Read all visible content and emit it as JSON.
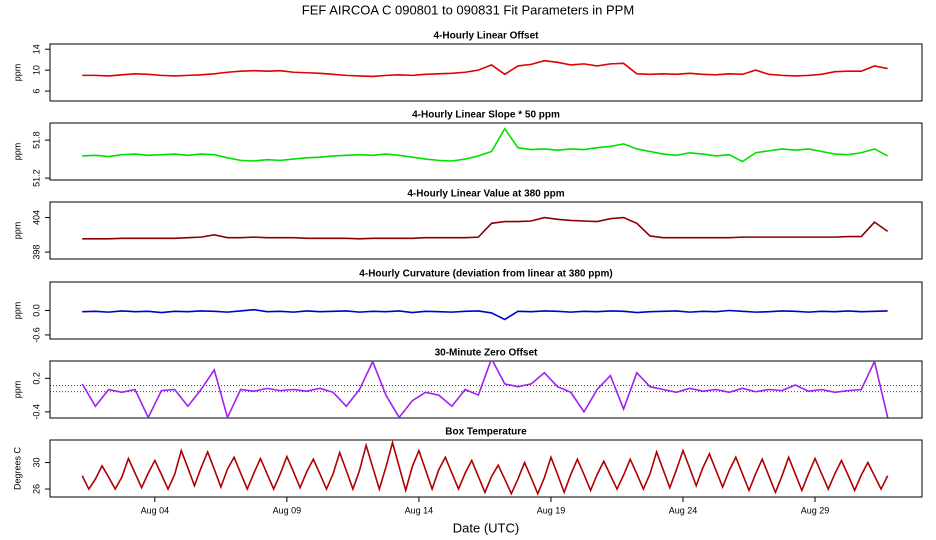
{
  "title": "FEF   AIRCOA C   090801 to 090831   Fit Parameters in PPM",
  "chart_data": [
    {
      "type": "line",
      "title": "4-Hourly Linear Offset",
      "ylabel": "ppm",
      "color": "#e00000",
      "xlim": [
        0.03,
        33.05
      ],
      "ylim": [
        4.1,
        15
      ],
      "yticks": [
        6,
        10,
        14
      ],
      "x": [
        1.25,
        1.75,
        2.25,
        2.75,
        3.25,
        3.75,
        4.25,
        4.75,
        5.25,
        5.75,
        6.25,
        6.75,
        7.25,
        7.75,
        8.25,
        8.75,
        9.25,
        9.75,
        10.25,
        10.75,
        11.25,
        11.75,
        12.25,
        12.75,
        13.25,
        13.75,
        14.25,
        14.75,
        15.25,
        15.75,
        16.25,
        16.75,
        17.25,
        17.75,
        18.25,
        18.75,
        19.25,
        19.75,
        20.25,
        20.75,
        21.25,
        21.75,
        22.25,
        22.75,
        23.25,
        23.75,
        24.25,
        24.75,
        25.25,
        25.75,
        26.25,
        26.75,
        27.25,
        27.75,
        28.25,
        28.75,
        29.25,
        29.75,
        30.25,
        30.75,
        31.25,
        31.75
      ],
      "values": [
        9.0,
        9.0,
        8.9,
        9.1,
        9.3,
        9.2,
        9.0,
        8.9,
        9.0,
        9.1,
        9.3,
        9.6,
        9.8,
        9.9,
        9.8,
        9.9,
        9.6,
        9.5,
        9.4,
        9.2,
        9.0,
        8.9,
        8.8,
        9.0,
        9.1,
        9.0,
        9.2,
        9.3,
        9.4,
        9.6,
        10.0,
        11.0,
        9.2,
        10.8,
        11.1,
        11.8,
        11.5,
        11.0,
        11.2,
        10.8,
        11.2,
        11.3,
        9.3,
        9.2,
        9.3,
        9.2,
        9.4,
        9.2,
        9.1,
        9.3,
        9.2,
        10.0,
        9.2,
        9.0,
        8.9,
        9.0,
        9.2,
        9.7,
        9.8,
        9.8,
        10.8,
        10.3
      ]
    },
    {
      "type": "line",
      "title": "4-Hourly Linear Slope * 50 ppm",
      "ylabel": "ppm",
      "color": "#00e000",
      "xlim": [
        0.03,
        33.05
      ],
      "ylim": [
        51.17,
        52.07
      ],
      "yticks": [
        51.2,
        51.8
      ],
      "x": [
        1.25,
        1.75,
        2.25,
        2.75,
        3.25,
        3.75,
        4.25,
        4.75,
        5.25,
        5.75,
        6.25,
        6.75,
        7.25,
        7.75,
        8.25,
        8.75,
        9.25,
        9.75,
        10.25,
        10.75,
        11.25,
        11.75,
        12.25,
        12.75,
        13.25,
        13.75,
        14.25,
        14.75,
        15.25,
        15.75,
        16.25,
        16.75,
        17.25,
        17.75,
        18.25,
        18.75,
        19.25,
        19.75,
        20.25,
        20.75,
        21.25,
        21.75,
        22.25,
        22.75,
        23.25,
        23.75,
        24.25,
        24.75,
        25.25,
        25.75,
        26.25,
        26.75,
        27.25,
        27.75,
        28.25,
        28.75,
        29.25,
        29.75,
        30.25,
        30.75,
        31.25,
        31.75
      ],
      "values": [
        51.55,
        51.56,
        51.54,
        51.57,
        51.58,
        51.56,
        51.57,
        51.58,
        51.56,
        51.58,
        51.57,
        51.52,
        51.48,
        51.47,
        51.49,
        51.48,
        51.5,
        51.52,
        51.53,
        51.55,
        51.56,
        51.57,
        51.56,
        51.58,
        51.56,
        51.53,
        51.5,
        51.48,
        51.47,
        51.5,
        51.55,
        51.62,
        51.98,
        51.68,
        51.65,
        51.66,
        51.64,
        51.66,
        51.65,
        51.68,
        51.7,
        51.74,
        51.66,
        51.62,
        51.58,
        51.56,
        51.6,
        51.58,
        51.55,
        51.57,
        51.46,
        51.6,
        51.63,
        51.66,
        51.64,
        51.66,
        51.62,
        51.58,
        51.57,
        51.6,
        51.66,
        51.55
      ]
    },
    {
      "type": "line",
      "title": "4-Hourly Linear Value at 380 ppm",
      "ylabel": "ppm",
      "color": "#8b0000",
      "xlim": [
        0.03,
        33.05
      ],
      "ylim": [
        396.8,
        406.7
      ],
      "yticks": [
        398,
        404
      ],
      "x": [
        1.25,
        1.75,
        2.25,
        2.75,
        3.25,
        3.75,
        4.25,
        4.75,
        5.25,
        5.75,
        6.25,
        6.75,
        7.25,
        7.75,
        8.25,
        8.75,
        9.25,
        9.75,
        10.25,
        10.75,
        11.25,
        11.75,
        12.25,
        12.75,
        13.25,
        13.75,
        14.25,
        14.75,
        15.25,
        15.75,
        16.25,
        16.75,
        17.25,
        17.75,
        18.25,
        18.75,
        19.25,
        19.75,
        20.25,
        20.75,
        21.25,
        21.75,
        22.25,
        22.75,
        23.25,
        23.75,
        24.25,
        24.75,
        25.25,
        25.75,
        26.25,
        26.75,
        27.25,
        27.75,
        28.25,
        28.75,
        29.25,
        29.75,
        30.25,
        30.75,
        31.25,
        31.75
      ],
      "values": [
        400.3,
        400.3,
        400.3,
        400.4,
        400.4,
        400.4,
        400.4,
        400.4,
        400.5,
        400.6,
        401.0,
        400.5,
        400.5,
        400.6,
        400.5,
        400.5,
        400.5,
        400.4,
        400.4,
        400.4,
        400.4,
        400.3,
        400.4,
        400.4,
        400.4,
        400.4,
        400.5,
        400.5,
        400.5,
        400.5,
        400.6,
        403.0,
        403.3,
        403.3,
        403.4,
        404.0,
        403.7,
        403.5,
        403.4,
        403.3,
        403.8,
        404.0,
        403.0,
        400.8,
        400.5,
        400.5,
        400.5,
        400.5,
        400.5,
        400.5,
        400.6,
        400.6,
        400.6,
        400.6,
        400.6,
        400.6,
        400.6,
        400.6,
        400.7,
        400.7,
        403.2,
        401.6
      ]
    },
    {
      "type": "line",
      "title": "4-Hourly Curvature (deviation from linear at 380 ppm)",
      "ylabel": "ppm",
      "color": "#0000cc",
      "xlim": [
        0.03,
        33.05
      ],
      "ylim": [
        -0.7,
        0.7
      ],
      "yticks": [
        -0.6,
        {
          "value": 0,
          "label": "0.0"
        }
      ],
      "x": [
        1.25,
        1.75,
        2.25,
        2.75,
        3.25,
        3.75,
        4.25,
        4.75,
        5.25,
        5.75,
        6.25,
        6.75,
        7.25,
        7.75,
        8.25,
        8.75,
        9.25,
        9.75,
        10.25,
        10.75,
        11.25,
        11.75,
        12.25,
        12.75,
        13.25,
        13.75,
        14.25,
        14.75,
        15.25,
        15.75,
        16.25,
        16.75,
        17.25,
        17.75,
        18.25,
        18.75,
        19.25,
        19.75,
        20.25,
        20.75,
        21.25,
        21.75,
        22.25,
        22.75,
        23.25,
        23.75,
        24.25,
        24.75,
        25.25,
        25.75,
        26.25,
        26.75,
        27.25,
        27.75,
        28.25,
        28.75,
        29.25,
        29.75,
        30.25,
        30.75,
        31.25,
        31.75
      ],
      "values": [
        -0.03,
        -0.02,
        -0.04,
        -0.01,
        -0.03,
        -0.02,
        -0.05,
        -0.02,
        -0.03,
        -0.01,
        -0.02,
        -0.04,
        -0.01,
        0.02,
        -0.03,
        -0.02,
        -0.04,
        -0.01,
        -0.03,
        -0.02,
        -0.01,
        -0.04,
        -0.02,
        -0.03,
        -0.01,
        -0.05,
        -0.02,
        -0.03,
        -0.04,
        -0.02,
        -0.01,
        -0.06,
        -0.22,
        -0.02,
        -0.03,
        -0.01,
        -0.02,
        -0.04,
        -0.02,
        -0.03,
        -0.01,
        -0.02,
        -0.05,
        -0.03,
        -0.02,
        -0.01,
        -0.04,
        -0.02,
        -0.03,
        0.0,
        -0.02,
        -0.04,
        -0.03,
        -0.01,
        -0.02,
        -0.04,
        -0.02,
        -0.03,
        -0.01,
        -0.03,
        -0.02,
        -0.01
      ]
    },
    {
      "type": "line",
      "title": "30-Minute Zero Offset",
      "ylabel": "ppm",
      "color": "#a020f0",
      "xlim": [
        0.03,
        33.05
      ],
      "ylim": [
        -0.51,
        0.51
      ],
      "yticks": [
        -0.4,
        0.2
      ],
      "hlines": [
        0.07,
        -0.04
      ],
      "x": [
        1.25,
        1.75,
        2.25,
        2.75,
        3.25,
        3.75,
        4.25,
        4.75,
        5.25,
        5.75,
        6.25,
        6.75,
        7.25,
        7.75,
        8.25,
        8.75,
        9.25,
        9.75,
        10.25,
        10.75,
        11.25,
        11.75,
        12.25,
        12.75,
        13.25,
        13.75,
        14.25,
        14.75,
        15.25,
        15.75,
        16.25,
        16.75,
        17.25,
        17.75,
        18.25,
        18.75,
        19.25,
        19.75,
        20.25,
        20.75,
        21.25,
        21.75,
        22.25,
        22.75,
        23.25,
        23.75,
        24.25,
        24.75,
        25.25,
        25.75,
        26.25,
        26.75,
        27.25,
        27.75,
        28.25,
        28.75,
        29.25,
        29.75,
        30.25,
        30.75,
        31.25,
        31.75
      ],
      "values": [
        0.1,
        -0.3,
        0.0,
        -0.05,
        0.0,
        -0.5,
        -0.02,
        0.0,
        -0.3,
        0.0,
        0.35,
        -0.5,
        0.0,
        -0.03,
        0.02,
        -0.02,
        0.0,
        -0.03,
        0.02,
        -0.05,
        -0.3,
        0.0,
        0.5,
        -0.1,
        -0.5,
        -0.2,
        -0.05,
        -0.1,
        -0.3,
        0.0,
        -0.1,
        0.55,
        0.1,
        0.05,
        0.1,
        0.3,
        0.05,
        -0.05,
        -0.4,
        0.0,
        0.25,
        -0.35,
        0.3,
        0.05,
        0.0,
        -0.05,
        0.02,
        -0.03,
        0.0,
        -0.05,
        0.02,
        -0.04,
        0.0,
        -0.02,
        0.08,
        -0.03,
        0.0,
        -0.05,
        -0.02,
        0.0,
        0.5,
        -0.5
      ]
    },
    {
      "type": "line",
      "title": "Box Temperature",
      "ylabel": "Degrees C",
      "xlabel": "Date (UTC)",
      "color": "#b00000",
      "xlim": [
        0.03,
        33.05
      ],
      "ylim": [
        24.8,
        33.4
      ],
      "yticks": [
        26,
        30
      ],
      "xticks": [
        {
          "value": 4,
          "label": "Aug 04"
        },
        {
          "value": 9,
          "label": "Aug 09"
        },
        {
          "value": 14,
          "label": "Aug 14"
        },
        {
          "value": 19,
          "label": "Aug 19"
        },
        {
          "value": 24,
          "label": "Aug 24"
        },
        {
          "value": 29,
          "label": "Aug 29"
        }
      ],
      "x": [
        1.25,
        1.5,
        1.75,
        2,
        2.25,
        2.5,
        2.75,
        3,
        3.25,
        3.5,
        3.75,
        4,
        4.25,
        4.5,
        4.75,
        5,
        5.25,
        5.5,
        5.75,
        6,
        6.25,
        6.5,
        6.75,
        7,
        7.25,
        7.5,
        7.75,
        8,
        8.25,
        8.5,
        8.75,
        9,
        9.25,
        9.5,
        9.75,
        10,
        10.25,
        10.5,
        10.75,
        11,
        11.25,
        11.5,
        11.75,
        12,
        12.25,
        12.5,
        12.75,
        13,
        13.25,
        13.5,
        13.75,
        14,
        14.25,
        14.5,
        14.75,
        15,
        15.25,
        15.5,
        15.75,
        16,
        16.25,
        16.5,
        16.75,
        17,
        17.25,
        17.5,
        17.75,
        18,
        18.25,
        18.5,
        18.75,
        19,
        19.25,
        19.5,
        19.75,
        20,
        20.25,
        20.5,
        20.75,
        21,
        21.25,
        21.5,
        21.75,
        22,
        22.25,
        22.5,
        22.75,
        23,
        23.25,
        23.5,
        23.75,
        24,
        24.25,
        24.5,
        24.75,
        25,
        25.25,
        25.5,
        25.75,
        26,
        26.25,
        26.5,
        26.75,
        27,
        27.25,
        27.5,
        27.75,
        28,
        28.25,
        28.5,
        28.75,
        29,
        29.25,
        29.5,
        29.75,
        30,
        30.25,
        30.5,
        30.75,
        31,
        31.25,
        31.5,
        31.75
      ],
      "values": [
        28.0,
        26.0,
        27.5,
        29.5,
        27.8,
        26.0,
        27.8,
        30.6,
        28.4,
        26.2,
        28.4,
        30.3,
        28.2,
        26.0,
        28.2,
        31.8,
        29.2,
        26.5,
        29.2,
        31.6,
        29.0,
        26.3,
        29.0,
        30.8,
        28.4,
        26.0,
        28.4,
        30.6,
        28.3,
        26.0,
        28.3,
        30.9,
        28.6,
        26.2,
        28.6,
        30.5,
        28.3,
        26.0,
        28.3,
        31.5,
        28.8,
        26.0,
        28.8,
        32.6,
        29.3,
        26.0,
        29.3,
        33.0,
        29.4,
        25.8,
        29.4,
        31.8,
        28.9,
        26.0,
        28.9,
        30.8,
        28.4,
        26.0,
        28.4,
        30.3,
        27.9,
        25.5,
        27.9,
        29.6,
        27.5,
        25.3,
        27.5,
        30.0,
        27.7,
        25.3,
        27.7,
        30.8,
        28.2,
        25.5,
        28.2,
        30.5,
        28.2,
        25.8,
        28.2,
        30.2,
        28.1,
        26.0,
        28.1,
        30.5,
        28.3,
        26.0,
        28.3,
        31.6,
        28.9,
        26.2,
        28.9,
        31.8,
        29.2,
        26.5,
        29.2,
        31.3,
        28.8,
        26.3,
        28.8,
        30.8,
        28.3,
        25.8,
        28.3,
        30.5,
        28.0,
        25.5,
        28.0,
        30.8,
        28.3,
        25.8,
        28.3,
        30.6,
        28.3,
        26.0,
        28.3,
        30.3,
        28.1,
        25.8,
        28.1,
        30.0,
        28.0,
        26.0,
        28.0
      ]
    }
  ]
}
